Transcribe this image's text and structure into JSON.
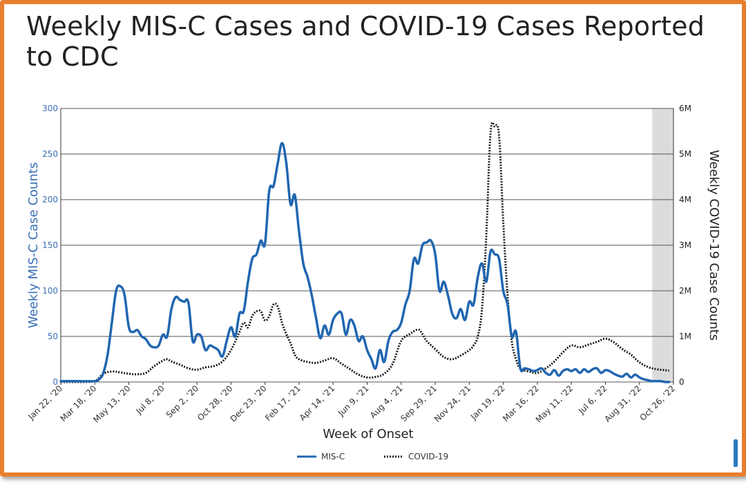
{
  "chart_data": {
    "type": "line",
    "title": "Weekly MIS-C Cases and COVID-19 Cases Reported to CDC",
    "xlabel": "Week of Onset",
    "ylabel": "Weekly MIS-C Case Counts",
    "y2label": "Weekly COVID-19 Case Counts",
    "ylim": [
      0,
      300
    ],
    "y2lim": [
      0,
      6000000
    ],
    "yticks": [
      "0",
      "50",
      "100",
      "150",
      "200",
      "250",
      "300"
    ],
    "y2ticks": [
      "0",
      "1M",
      "2M",
      "3M",
      "4M",
      "5M",
      "6M"
    ],
    "x_tick_labels": [
      "Jan 22, '20",
      "Mar 18, '20",
      "May 13, '20",
      "Jul 8, '20",
      "Sep 2, '20",
      "Oct 28, '20",
      "Dec 23, '20",
      "Feb 17, '21",
      "Apr 14, '21",
      "Jun 9, '21",
      "Aug 4, '21",
      "Sep 29, '21",
      "Nov 24, '21",
      "Jan 19, '22",
      "Mar 16, '22",
      "May 11, '22",
      "Jul 6, '22",
      "Aug 31, '22",
      "Oct 26, '22"
    ],
    "x_range_weeks": [
      0,
      144
    ],
    "shaded_region_weeks": [
      139,
      144
    ],
    "grid": true,
    "legend_position": "bottom",
    "series": [
      {
        "name": "MIS-C",
        "axis": "left",
        "color": "#2166b0",
        "style": "solid",
        "points": [
          [
            0,
            1
          ],
          [
            4,
            1
          ],
          [
            8,
            1
          ],
          [
            9,
            3
          ],
          [
            10,
            10
          ],
          [
            11,
            30
          ],
          [
            12,
            65
          ],
          [
            13,
            100
          ],
          [
            14,
            105
          ],
          [
            15,
            95
          ],
          [
            16,
            60
          ],
          [
            17,
            55
          ],
          [
            18,
            57
          ],
          [
            19,
            50
          ],
          [
            20,
            47
          ],
          [
            21,
            40
          ],
          [
            22,
            38
          ],
          [
            23,
            40
          ],
          [
            24,
            52
          ],
          [
            25,
            50
          ],
          [
            26,
            80
          ],
          [
            27,
            93
          ],
          [
            28,
            90
          ],
          [
            29,
            88
          ],
          [
            30,
            87
          ],
          [
            31,
            45
          ],
          [
            32,
            52
          ],
          [
            33,
            50
          ],
          [
            34,
            35
          ],
          [
            35,
            40
          ],
          [
            36,
            38
          ],
          [
            37,
            35
          ],
          [
            38,
            28
          ],
          [
            39,
            45
          ],
          [
            40,
            60
          ],
          [
            41,
            50
          ],
          [
            42,
            75
          ],
          [
            43,
            78
          ],
          [
            44,
            110
          ],
          [
            45,
            135
          ],
          [
            46,
            140
          ],
          [
            47,
            155
          ],
          [
            48,
            152
          ],
          [
            49,
            210
          ],
          [
            50,
            215
          ],
          [
            51,
            240
          ],
          [
            52,
            262
          ],
          [
            53,
            240
          ],
          [
            54,
            195
          ],
          [
            55,
            205
          ],
          [
            56,
            165
          ],
          [
            57,
            130
          ],
          [
            58,
            115
          ],
          [
            59,
            95
          ],
          [
            60,
            70
          ],
          [
            61,
            48
          ],
          [
            62,
            62
          ],
          [
            63,
            52
          ],
          [
            64,
            68
          ],
          [
            65,
            75
          ],
          [
            66,
            75
          ],
          [
            67,
            52
          ],
          [
            68,
            68
          ],
          [
            69,
            62
          ],
          [
            70,
            45
          ],
          [
            71,
            50
          ],
          [
            72,
            35
          ],
          [
            73,
            25
          ],
          [
            74,
            15
          ],
          [
            75,
            35
          ],
          [
            76,
            22
          ],
          [
            77,
            45
          ],
          [
            78,
            55
          ],
          [
            79,
            57
          ],
          [
            80,
            65
          ],
          [
            81,
            85
          ],
          [
            82,
            100
          ],
          [
            83,
            135
          ],
          [
            84,
            130
          ],
          [
            85,
            150
          ],
          [
            86,
            153
          ],
          [
            87,
            155
          ],
          [
            88,
            140
          ],
          [
            89,
            100
          ],
          [
            90,
            110
          ],
          [
            91,
            95
          ],
          [
            92,
            75
          ],
          [
            93,
            70
          ],
          [
            94,
            80
          ],
          [
            95,
            68
          ],
          [
            96,
            88
          ],
          [
            97,
            85
          ],
          [
            98,
            115
          ],
          [
            99,
            130
          ],
          [
            100,
            110
          ],
          [
            101,
            143
          ],
          [
            102,
            140
          ],
          [
            103,
            135
          ],
          [
            104,
            100
          ],
          [
            105,
            85
          ],
          [
            106,
            50
          ],
          [
            107,
            55
          ],
          [
            108,
            15
          ],
          [
            109,
            15
          ],
          [
            110,
            14
          ],
          [
            111,
            12
          ],
          [
            112,
            13
          ],
          [
            113,
            15
          ],
          [
            114,
            10
          ],
          [
            115,
            8
          ],
          [
            116,
            13
          ],
          [
            117,
            7
          ],
          [
            118,
            12
          ],
          [
            119,
            14
          ],
          [
            120,
            12
          ],
          [
            121,
            14
          ],
          [
            122,
            10
          ],
          [
            123,
            14
          ],
          [
            124,
            11
          ],
          [
            125,
            14
          ],
          [
            126,
            15
          ],
          [
            127,
            10
          ],
          [
            128,
            13
          ],
          [
            129,
            12
          ],
          [
            130,
            9
          ],
          [
            131,
            7
          ],
          [
            132,
            6
          ],
          [
            133,
            9
          ],
          [
            134,
            5
          ],
          [
            135,
            8
          ],
          [
            136,
            5
          ],
          [
            137,
            3
          ],
          [
            138,
            2
          ],
          [
            139,
            1
          ],
          [
            140,
            1
          ],
          [
            141,
            1
          ],
          [
            142,
            0
          ],
          [
            143,
            0
          ]
        ]
      },
      {
        "name": "COVID-19",
        "axis": "right",
        "color": "#1a1a1a",
        "style": "dotted",
        "points": [
          [
            0,
            0
          ],
          [
            5,
            0
          ],
          [
            8,
            20000
          ],
          [
            10,
            180000
          ],
          [
            12,
            230000
          ],
          [
            14,
            210000
          ],
          [
            16,
            180000
          ],
          [
            18,
            170000
          ],
          [
            20,
            200000
          ],
          [
            22,
            350000
          ],
          [
            24,
            470000
          ],
          [
            25,
            500000
          ],
          [
            26,
            450000
          ],
          [
            28,
            380000
          ],
          [
            30,
            300000
          ],
          [
            32,
            270000
          ],
          [
            34,
            320000
          ],
          [
            36,
            350000
          ],
          [
            38,
            450000
          ],
          [
            40,
            700000
          ],
          [
            42,
            1100000
          ],
          [
            43,
            1300000
          ],
          [
            44,
            1200000
          ],
          [
            45,
            1450000
          ],
          [
            46,
            1550000
          ],
          [
            47,
            1550000
          ],
          [
            48,
            1350000
          ],
          [
            49,
            1450000
          ],
          [
            50,
            1700000
          ],
          [
            51,
            1650000
          ],
          [
            52,
            1300000
          ],
          [
            53,
            1050000
          ],
          [
            54,
            850000
          ],
          [
            55,
            600000
          ],
          [
            56,
            500000
          ],
          [
            58,
            440000
          ],
          [
            60,
            420000
          ],
          [
            62,
            470000
          ],
          [
            64,
            520000
          ],
          [
            66,
            400000
          ],
          [
            68,
            280000
          ],
          [
            70,
            160000
          ],
          [
            72,
            100000
          ],
          [
            74,
            110000
          ],
          [
            76,
            180000
          ],
          [
            78,
            400000
          ],
          [
            80,
            900000
          ],
          [
            82,
            1050000
          ],
          [
            84,
            1150000
          ],
          [
            85,
            1050000
          ],
          [
            86,
            900000
          ],
          [
            88,
            720000
          ],
          [
            90,
            550000
          ],
          [
            92,
            500000
          ],
          [
            94,
            580000
          ],
          [
            96,
            700000
          ],
          [
            97,
            800000
          ],
          [
            98,
            1000000
          ],
          [
            99,
            1600000
          ],
          [
            100,
            3200000
          ],
          [
            101,
            5450000
          ],
          [
            102,
            5600000
          ],
          [
            103,
            5400000
          ],
          [
            104,
            3500000
          ],
          [
            105,
            1900000
          ],
          [
            106,
            900000
          ],
          [
            107,
            500000
          ],
          [
            108,
            300000
          ],
          [
            110,
            230000
          ],
          [
            112,
            200000
          ],
          [
            114,
            300000
          ],
          [
            116,
            450000
          ],
          [
            118,
            650000
          ],
          [
            120,
            800000
          ],
          [
            122,
            760000
          ],
          [
            124,
            820000
          ],
          [
            126,
            880000
          ],
          [
            128,
            950000
          ],
          [
            130,
            870000
          ],
          [
            132,
            720000
          ],
          [
            134,
            600000
          ],
          [
            136,
            430000
          ],
          [
            138,
            330000
          ],
          [
            140,
            280000
          ],
          [
            142,
            260000
          ],
          [
            143,
            250000
          ]
        ]
      }
    ]
  }
}
